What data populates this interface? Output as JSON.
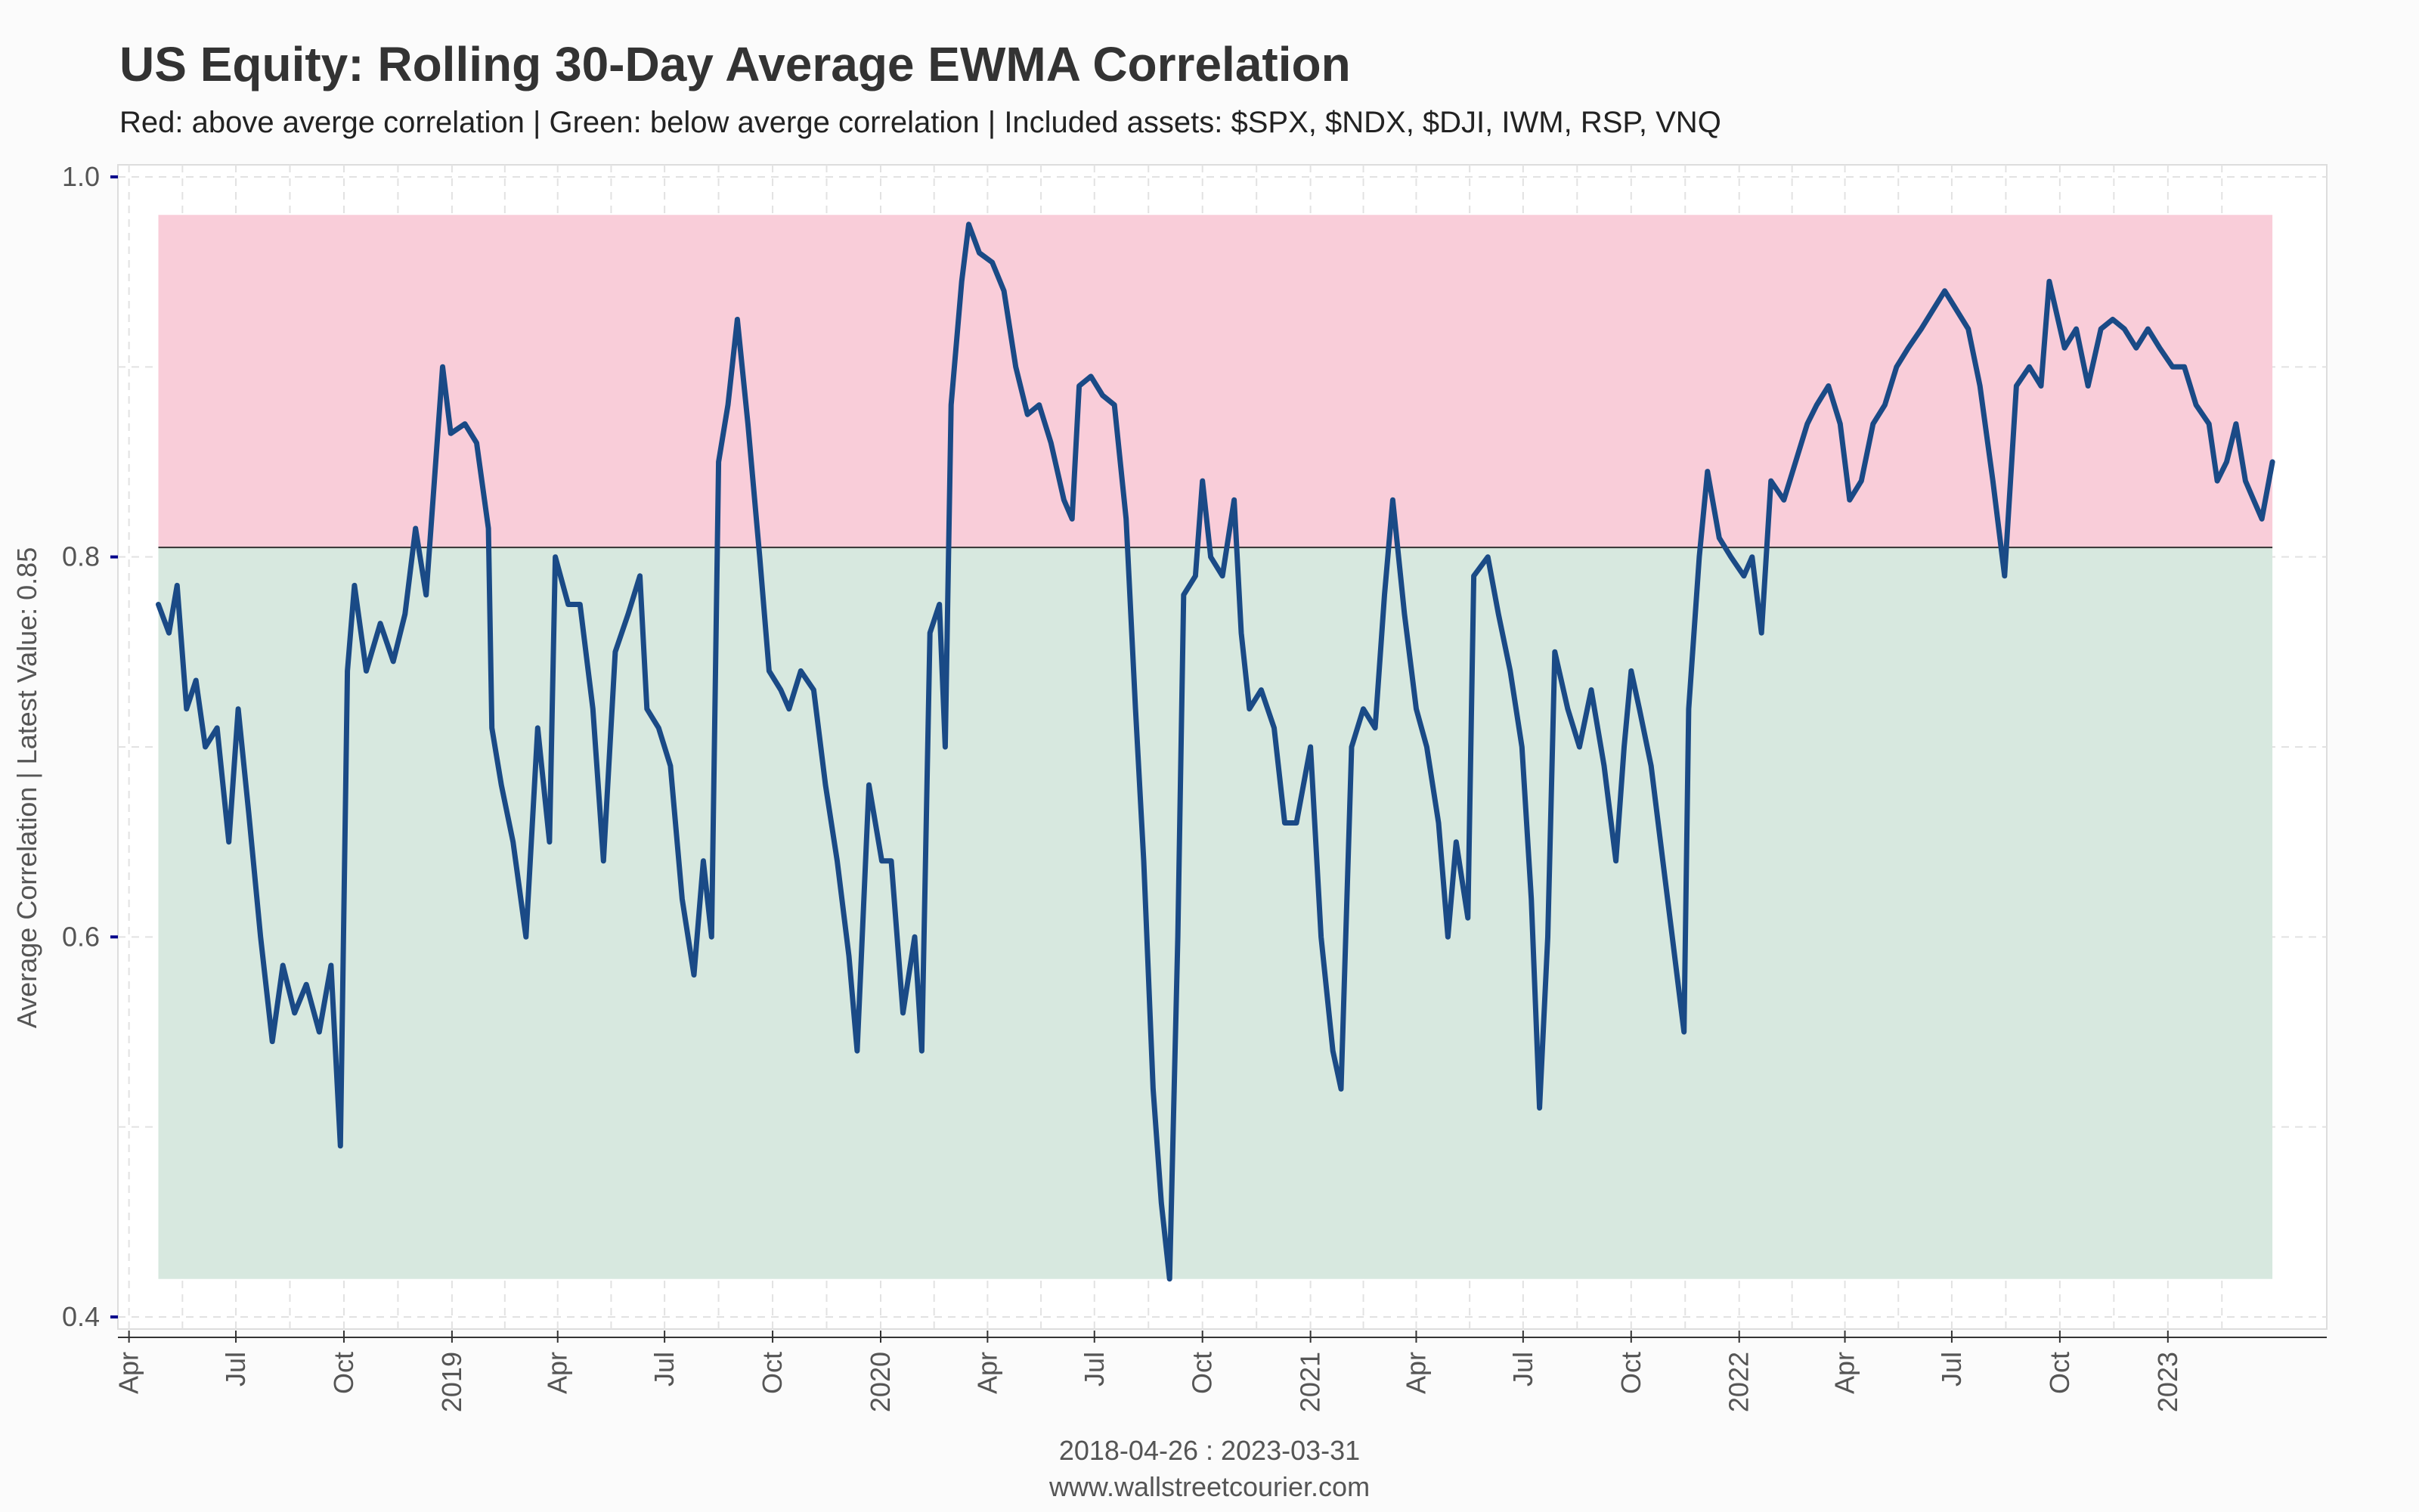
{
  "header": {
    "title": "US Equity: Rolling 30-Day Average EWMA Correlation",
    "subtitle": "Red: above averge correlation | Green: below averge correlation | Included assets: $SPX, $NDX, $DJI, IWM, RSP, VNQ"
  },
  "footer": {
    "range": "2018-04-26 : 2023-03-31",
    "site": "www.wallstreetcourier.com"
  },
  "colors": {
    "line": "#1a4a86",
    "above_band": "#f9cdd9",
    "below_band": "#d7e8df",
    "average_line": "#333333",
    "grid": "#e2e2e2",
    "axis_tick": "#00008b"
  },
  "chart_data": {
    "type": "line",
    "title": "US Equity: Rolling 30-Day Average EWMA Correlation",
    "subtitle": "Red: above averge correlation | Green: below averge correlation | Included assets: $SPX, $NDX, $DJI, IWM, RSP, VNQ",
    "xlabel": "2018-04-26 : 2023-03-31",
    "ylabel": "Average Correlation | Latest Value: 0.85",
    "xlim": [
      "2018-03-20",
      "2023-05-15"
    ],
    "ylim": [
      0.4,
      1.0
    ],
    "grid": true,
    "yticks": [
      {
        "value": 0.4,
        "label": "0.4"
      },
      {
        "value": 0.6,
        "label": "0.6"
      },
      {
        "value": 0.8,
        "label": "0.8"
      },
      {
        "value": 1.0,
        "label": "1.0"
      }
    ],
    "xticks": [
      {
        "date": "2018-04-01",
        "label": "Apr"
      },
      {
        "date": "2018-07-01",
        "label": "Jul"
      },
      {
        "date": "2018-10-01",
        "label": "Oct"
      },
      {
        "date": "2019-01-01",
        "label": "2019"
      },
      {
        "date": "2019-04-01",
        "label": "Apr"
      },
      {
        "date": "2019-07-01",
        "label": "Jul"
      },
      {
        "date": "2019-10-01",
        "label": "Oct"
      },
      {
        "date": "2020-01-01",
        "label": "2020"
      },
      {
        "date": "2020-04-01",
        "label": "Apr"
      },
      {
        "date": "2020-07-01",
        "label": "Jul"
      },
      {
        "date": "2020-10-01",
        "label": "Oct"
      },
      {
        "date": "2021-01-01",
        "label": "2021"
      },
      {
        "date": "2021-04-01",
        "label": "Apr"
      },
      {
        "date": "2021-07-01",
        "label": "Jul"
      },
      {
        "date": "2021-10-01",
        "label": "Oct"
      },
      {
        "date": "2022-01-01",
        "label": "2022"
      },
      {
        "date": "2022-04-01",
        "label": "Apr"
      },
      {
        "date": "2022-07-01",
        "label": "Jul"
      },
      {
        "date": "2022-10-01",
        "label": "Oct"
      },
      {
        "date": "2023-01-01",
        "label": "2023"
      }
    ],
    "average": 0.805,
    "bands": [
      {
        "name": "above average",
        "from": 0.805,
        "to": 0.98,
        "color": "#f9cdd9"
      },
      {
        "name": "below average",
        "from": 0.42,
        "to": 0.805,
        "color": "#d7e8df"
      }
    ],
    "band_x_range": [
      "2018-04-26",
      "2023-03-31"
    ],
    "series": [
      {
        "points": [
          [
            "2018-04-26",
            0.775
          ],
          [
            "2018-05-05",
            0.76
          ],
          [
            "2018-05-12",
            0.785
          ],
          [
            "2018-05-20",
            0.72
          ],
          [
            "2018-05-28",
            0.735
          ],
          [
            "2018-06-05",
            0.7
          ],
          [
            "2018-06-15",
            0.71
          ],
          [
            "2018-06-25",
            0.65
          ],
          [
            "2018-07-03",
            0.72
          ],
          [
            "2018-07-12",
            0.665
          ],
          [
            "2018-07-22",
            0.6
          ],
          [
            "2018-08-01",
            0.545
          ],
          [
            "2018-08-10",
            0.585
          ],
          [
            "2018-08-20",
            0.56
          ],
          [
            "2018-08-30",
            0.575
          ],
          [
            "2018-09-10",
            0.55
          ],
          [
            "2018-09-20",
            0.585
          ],
          [
            "2018-09-28",
            0.49
          ],
          [
            "2018-10-04",
            0.74
          ],
          [
            "2018-10-10",
            0.785
          ],
          [
            "2018-10-20",
            0.74
          ],
          [
            "2018-11-01",
            0.765
          ],
          [
            "2018-11-12",
            0.745
          ],
          [
            "2018-11-22",
            0.77
          ],
          [
            "2018-12-01",
            0.815
          ],
          [
            "2018-12-10",
            0.78
          ],
          [
            "2018-12-24",
            0.9
          ],
          [
            "2018-12-31",
            0.865
          ],
          [
            "2019-01-12",
            0.87
          ],
          [
            "2019-01-22",
            0.86
          ],
          [
            "2019-02-01",
            0.815
          ],
          [
            "2019-02-04",
            0.71
          ],
          [
            "2019-02-12",
            0.68
          ],
          [
            "2019-02-22",
            0.65
          ],
          [
            "2019-03-05",
            0.6
          ],
          [
            "2019-03-15",
            0.71
          ],
          [
            "2019-03-25",
            0.65
          ],
          [
            "2019-03-30",
            0.8
          ],
          [
            "2019-04-10",
            0.775
          ],
          [
            "2019-04-20",
            0.775
          ],
          [
            "2019-05-01",
            0.72
          ],
          [
            "2019-05-10",
            0.64
          ],
          [
            "2019-05-20",
            0.75
          ],
          [
            "2019-05-31",
            0.77
          ],
          [
            "2019-06-10",
            0.79
          ],
          [
            "2019-06-16",
            0.72
          ],
          [
            "2019-06-26",
            0.71
          ],
          [
            "2019-07-06",
            0.69
          ],
          [
            "2019-07-16",
            0.62
          ],
          [
            "2019-07-26",
            0.58
          ],
          [
            "2019-08-03",
            0.64
          ],
          [
            "2019-08-10",
            0.6
          ],
          [
            "2019-08-16",
            0.85
          ],
          [
            "2019-08-24",
            0.88
          ],
          [
            "2019-09-01",
            0.925
          ],
          [
            "2019-09-10",
            0.87
          ],
          [
            "2019-09-20",
            0.8
          ],
          [
            "2019-09-28",
            0.74
          ],
          [
            "2019-10-08",
            0.73
          ],
          [
            "2019-10-15",
            0.72
          ],
          [
            "2019-10-25",
            0.74
          ],
          [
            "2019-11-05",
            0.73
          ],
          [
            "2019-11-15",
            0.68
          ],
          [
            "2019-11-25",
            0.64
          ],
          [
            "2019-12-05",
            0.59
          ],
          [
            "2019-12-12",
            0.54
          ],
          [
            "2019-12-22",
            0.68
          ],
          [
            "2020-01-02",
            0.64
          ],
          [
            "2020-01-10",
            0.64
          ],
          [
            "2020-01-20",
            0.56
          ],
          [
            "2020-01-30",
            0.6
          ],
          [
            "2020-02-05",
            0.54
          ],
          [
            "2020-02-12",
            0.76
          ],
          [
            "2020-02-20",
            0.775
          ],
          [
            "2020-02-25",
            0.7
          ],
          [
            "2020-03-01",
            0.88
          ],
          [
            "2020-03-10",
            0.945
          ],
          [
            "2020-03-16",
            0.975
          ],
          [
            "2020-03-25",
            0.96
          ],
          [
            "2020-04-05",
            0.955
          ],
          [
            "2020-04-15",
            0.94
          ],
          [
            "2020-04-25",
            0.9
          ],
          [
            "2020-05-05",
            0.875
          ],
          [
            "2020-05-15",
            0.88
          ],
          [
            "2020-05-25",
            0.86
          ],
          [
            "2020-06-05",
            0.83
          ],
          [
            "2020-06-12",
            0.82
          ],
          [
            "2020-06-18",
            0.89
          ],
          [
            "2020-06-28",
            0.895
          ],
          [
            "2020-07-08",
            0.885
          ],
          [
            "2020-07-18",
            0.88
          ],
          [
            "2020-07-28",
            0.82
          ],
          [
            "2020-08-05",
            0.72
          ],
          [
            "2020-08-12",
            0.64
          ],
          [
            "2020-08-20",
            0.52
          ],
          [
            "2020-08-27",
            0.46
          ],
          [
            "2020-09-03",
            0.42
          ],
          [
            "2020-09-10",
            0.6
          ],
          [
            "2020-09-15",
            0.78
          ],
          [
            "2020-09-25",
            0.79
          ],
          [
            "2020-10-01",
            0.84
          ],
          [
            "2020-10-08",
            0.8
          ],
          [
            "2020-10-18",
            0.79
          ],
          [
            "2020-10-28",
            0.83
          ],
          [
            "2020-11-03",
            0.76
          ],
          [
            "2020-11-10",
            0.72
          ],
          [
            "2020-11-20",
            0.73
          ],
          [
            "2020-12-01",
            0.71
          ],
          [
            "2020-12-10",
            0.66
          ],
          [
            "2020-12-20",
            0.66
          ],
          [
            "2021-01-01",
            0.7
          ],
          [
            "2021-01-10",
            0.6
          ],
          [
            "2021-01-20",
            0.54
          ],
          [
            "2021-01-27",
            0.52
          ],
          [
            "2021-02-05",
            0.7
          ],
          [
            "2021-02-15",
            0.72
          ],
          [
            "2021-02-25",
            0.71
          ],
          [
            "2021-03-05",
            0.78
          ],
          [
            "2021-03-12",
            0.83
          ],
          [
            "2021-03-22",
            0.77
          ],
          [
            "2021-04-01",
            0.72
          ],
          [
            "2021-04-10",
            0.7
          ],
          [
            "2021-04-20",
            0.66
          ],
          [
            "2021-04-28",
            0.6
          ],
          [
            "2021-05-05",
            0.65
          ],
          [
            "2021-05-15",
            0.61
          ],
          [
            "2021-05-20",
            0.79
          ],
          [
            "2021-06-01",
            0.8
          ],
          [
            "2021-06-10",
            0.77
          ],
          [
            "2021-06-20",
            0.74
          ],
          [
            "2021-06-30",
            0.7
          ],
          [
            "2021-07-08",
            0.62
          ],
          [
            "2021-07-15",
            0.51
          ],
          [
            "2021-07-22",
            0.6
          ],
          [
            "2021-07-28",
            0.75
          ],
          [
            "2021-08-08",
            0.72
          ],
          [
            "2021-08-18",
            0.7
          ],
          [
            "2021-08-28",
            0.73
          ],
          [
            "2021-09-08",
            0.69
          ],
          [
            "2021-09-18",
            0.64
          ],
          [
            "2021-09-25",
            0.7
          ],
          [
            "2021-10-01",
            0.74
          ],
          [
            "2021-10-08",
            0.72
          ],
          [
            "2021-10-18",
            0.69
          ],
          [
            "2021-10-28",
            0.64
          ],
          [
            "2021-11-05",
            0.6
          ],
          [
            "2021-11-15",
            0.55
          ],
          [
            "2021-11-19",
            0.72
          ],
          [
            "2021-11-28",
            0.8
          ],
          [
            "2021-12-05",
            0.845
          ],
          [
            "2021-12-15",
            0.81
          ],
          [
            "2021-12-25",
            0.8
          ],
          [
            "2022-01-05",
            0.79
          ],
          [
            "2022-01-12",
            0.8
          ],
          [
            "2022-01-20",
            0.76
          ],
          [
            "2022-01-28",
            0.84
          ],
          [
            "2022-02-08",
            0.83
          ],
          [
            "2022-02-18",
            0.85
          ],
          [
            "2022-02-28",
            0.87
          ],
          [
            "2022-03-08",
            0.88
          ],
          [
            "2022-03-18",
            0.89
          ],
          [
            "2022-03-28",
            0.87
          ],
          [
            "2022-04-05",
            0.83
          ],
          [
            "2022-04-15",
            0.84
          ],
          [
            "2022-04-25",
            0.87
          ],
          [
            "2022-05-05",
            0.88
          ],
          [
            "2022-05-15",
            0.9
          ],
          [
            "2022-05-25",
            0.91
          ],
          [
            "2022-06-05",
            0.92
          ],
          [
            "2022-06-15",
            0.93
          ],
          [
            "2022-06-25",
            0.94
          ],
          [
            "2022-07-05",
            0.93
          ],
          [
            "2022-07-15",
            0.92
          ],
          [
            "2022-07-25",
            0.89
          ],
          [
            "2022-08-05",
            0.84
          ],
          [
            "2022-08-15",
            0.79
          ],
          [
            "2022-08-25",
            0.89
          ],
          [
            "2022-09-05",
            0.9
          ],
          [
            "2022-09-15",
            0.89
          ],
          [
            "2022-09-22",
            0.945
          ],
          [
            "2022-10-05",
            0.91
          ],
          [
            "2022-10-15",
            0.92
          ],
          [
            "2022-10-25",
            0.89
          ],
          [
            "2022-11-05",
            0.92
          ],
          [
            "2022-11-15",
            0.925
          ],
          [
            "2022-11-25",
            0.92
          ],
          [
            "2022-12-05",
            0.91
          ],
          [
            "2022-12-15",
            0.92
          ],
          [
            "2022-12-25",
            0.91
          ],
          [
            "2023-01-05",
            0.9
          ],
          [
            "2023-01-15",
            0.9
          ],
          [
            "2023-01-25",
            0.88
          ],
          [
            "2023-02-05",
            0.87
          ],
          [
            "2023-02-12",
            0.84
          ],
          [
            "2023-02-20",
            0.85
          ],
          [
            "2023-02-28",
            0.87
          ],
          [
            "2023-03-08",
            0.84
          ],
          [
            "2023-03-15",
            0.83
          ],
          [
            "2023-03-22",
            0.82
          ],
          [
            "2023-03-31",
            0.85
          ]
        ]
      }
    ]
  }
}
